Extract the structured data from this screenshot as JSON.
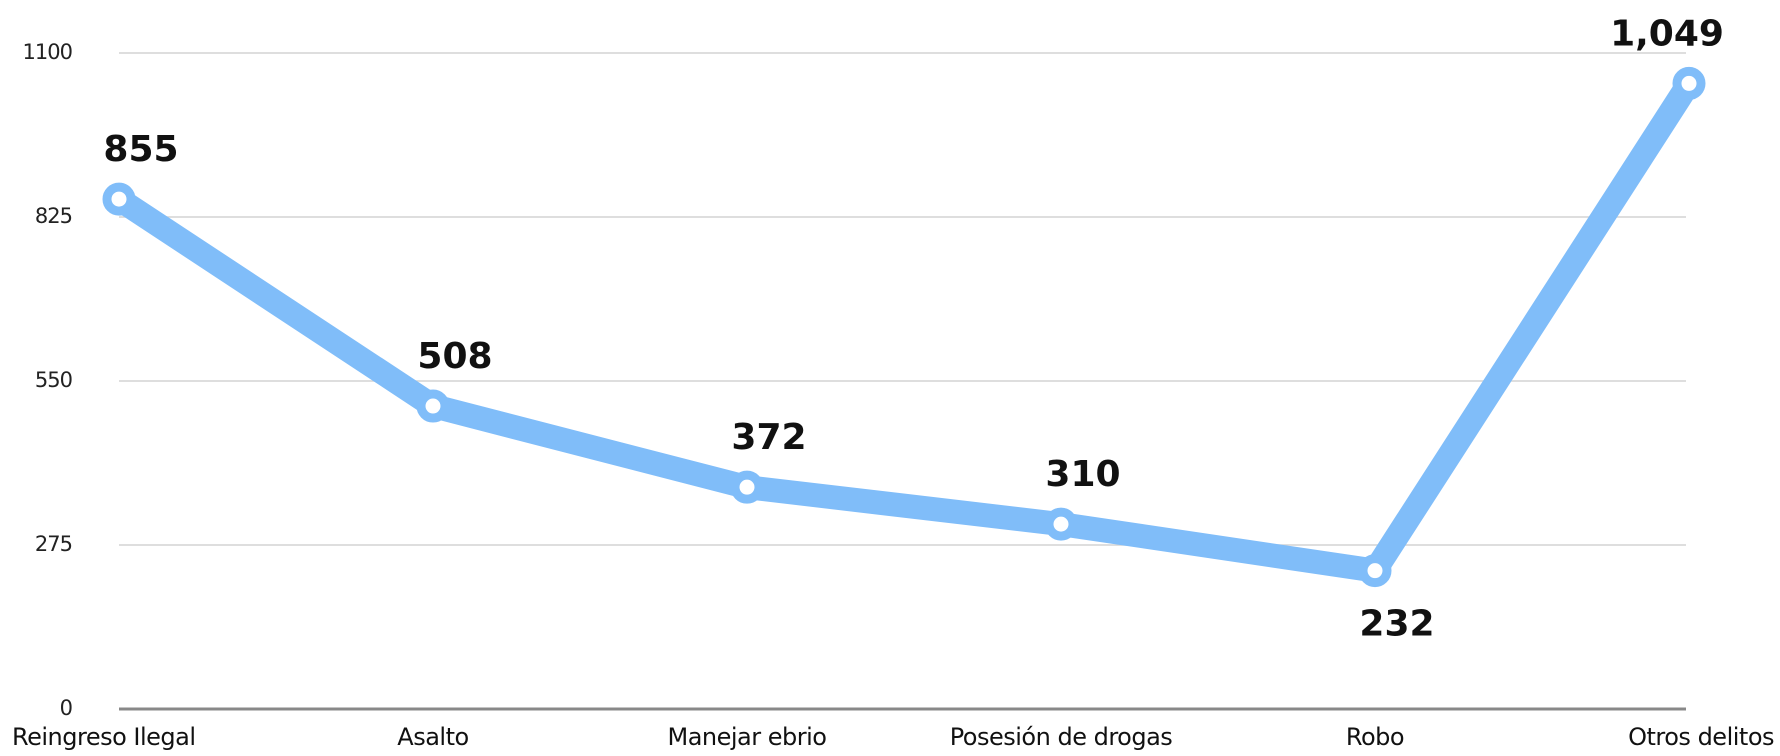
{
  "chart_data": {
    "type": "line",
    "categories": [
      "Reingreso Ilegal",
      "Asalto",
      "Manejar ebrio",
      "Posesión de drogas",
      "Robo",
      "Otros delitos"
    ],
    "series": [
      {
        "color": "#80bdf9",
        "values": [
          855,
          508,
          372,
          310,
          232,
          1049
        ],
        "value_labels": [
          "855",
          "508",
          "372",
          "310",
          "232",
          "1,049"
        ]
      }
    ],
    "ylim": [
      0,
      1100
    ],
    "yticks": [
      0,
      275,
      550,
      825,
      1100
    ],
    "grid": true
  }
}
